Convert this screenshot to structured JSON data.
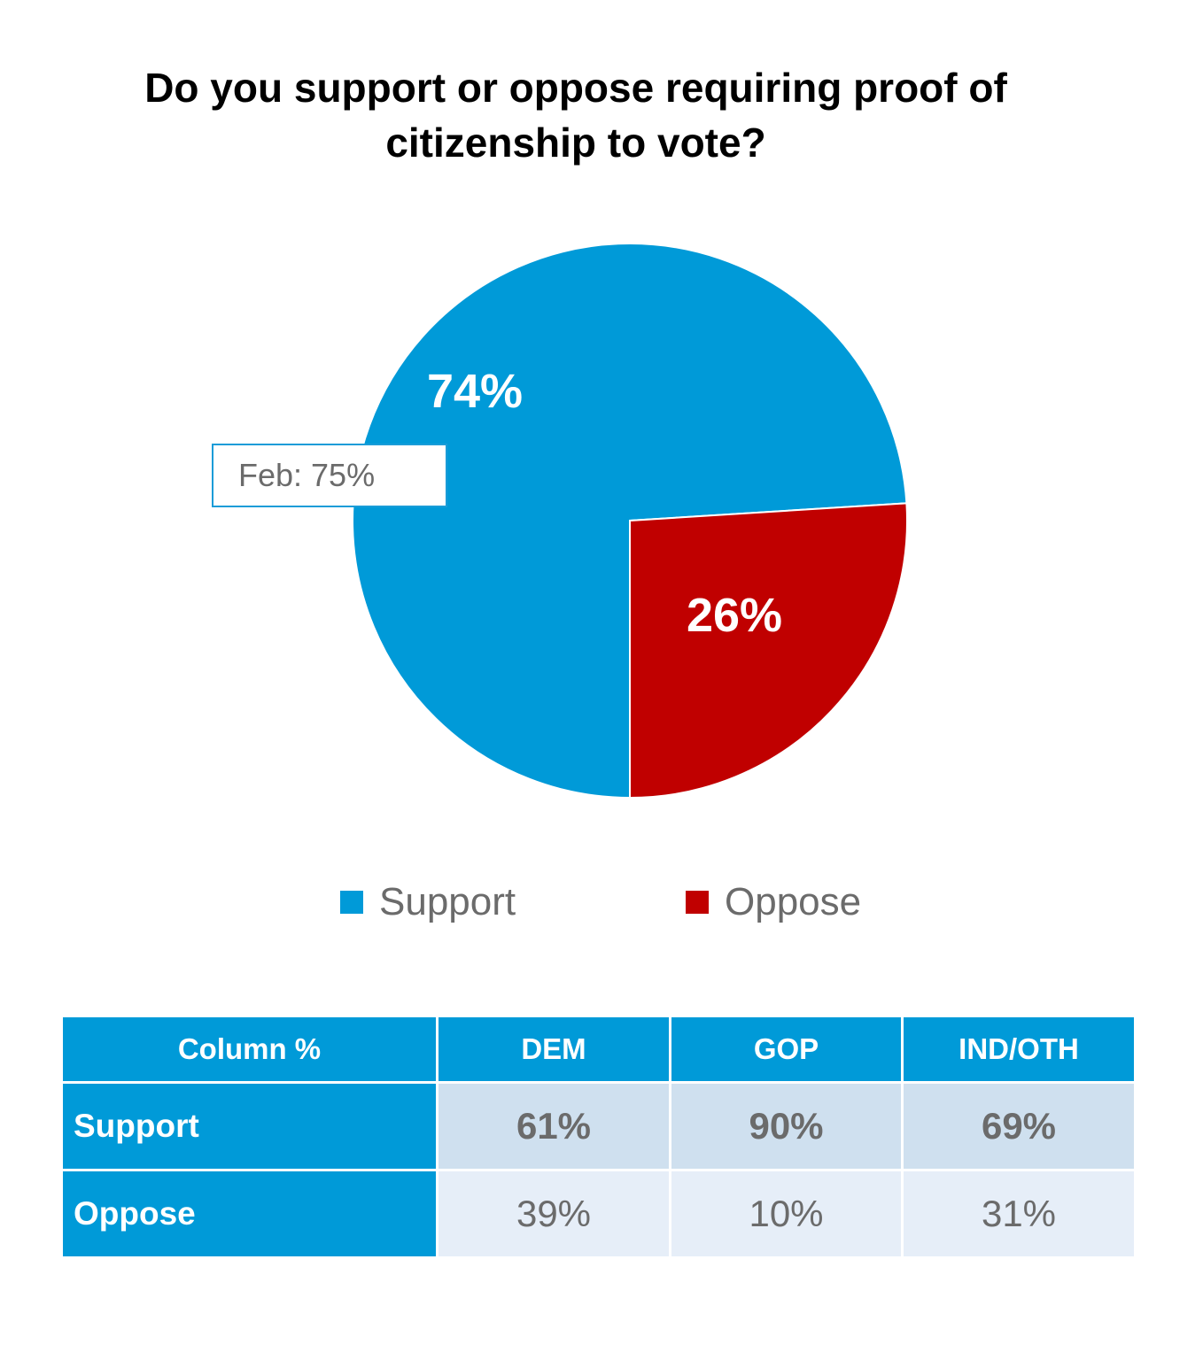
{
  "chart_data": {
    "type": "pie",
    "title": "Do you support or oppose requiring proof of citizenship to vote?",
    "title_lines": [
      "Do you support or oppose requiring proof of",
      "citizenship to vote?"
    ],
    "slices": [
      {
        "label": "Support",
        "value": 74,
        "value_label": "74%",
        "color": "#009ad8"
      },
      {
        "label": "Oppose",
        "value": 26,
        "value_label": "26%",
        "color": "#c00000"
      }
    ],
    "annotation": "Feb: 75%",
    "legend": [
      "Support",
      "Oppose"
    ]
  },
  "table": {
    "headers": [
      "Column %",
      "DEM",
      "GOP",
      "IND/OTH"
    ],
    "rows": [
      {
        "label": "Support",
        "values": [
          "61%",
          "90%",
          "69%"
        ]
      },
      {
        "label": "Oppose",
        "values": [
          "39%",
          "10%",
          "31%"
        ]
      }
    ]
  }
}
